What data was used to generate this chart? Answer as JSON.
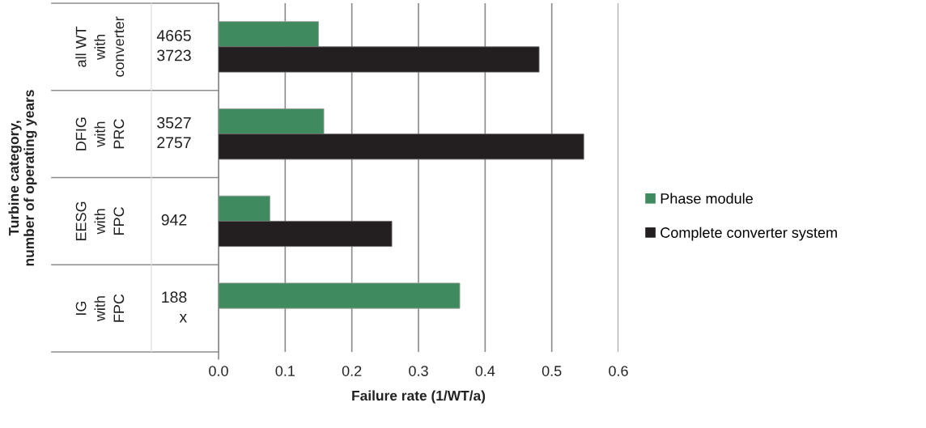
{
  "chart_data": {
    "type": "bar",
    "orientation": "horizontal",
    "categories": [
      "all WT\nwith\nconverter",
      "DFIG\nwith\nPRC",
      "EESG\nwith\nFPC",
      "IG\nwith\nFPC"
    ],
    "series": [
      {
        "name": "Phase module",
        "color": "#3f8b5f",
        "values": [
          0.15,
          0.158,
          0.077,
          0.362
        ]
      },
      {
        "name": "Complete converter system",
        "color": "#231f20",
        "values": [
          0.481,
          0.548,
          0.26,
          null
        ]
      }
    ],
    "xlabel": "Failure rate (1/WT/a)",
    "ylabel": "Turbine category,\nnumber of operating years",
    "xlim": [
      0,
      0.6
    ],
    "xticks": [
      {
        "value": 0,
        "label": "0.0"
      },
      0.1,
      0.2,
      0.3,
      0.4,
      0.5,
      0.6
    ],
    "grid": "x",
    "legend": "right",
    "annotations": [
      "4665\n3723",
      "3527\n2757",
      "942",
      "188\nx"
    ]
  }
}
